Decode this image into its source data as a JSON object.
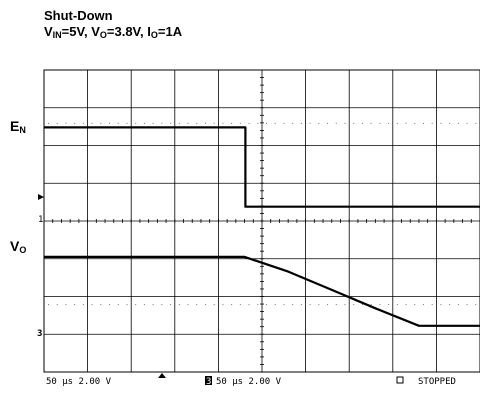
{
  "title": "Shut-Down",
  "conditions": [
    {
      "sym": "V",
      "sub": "IN",
      "val": "=5V, "
    },
    {
      "sym": "V",
      "sub": "O",
      "val": "=3.8V, "
    },
    {
      "sym": "I",
      "sub": "O",
      "val": "=1A"
    }
  ],
  "signal_labels": {
    "en": {
      "sym": "E",
      "sub": "N"
    },
    "vo": {
      "sym": "V",
      "sub": "O"
    }
  },
  "channel_markers": {
    "ch1": "1",
    "ch3": "3"
  },
  "footer": {
    "ch1_scale": "50 µs 2.00 V",
    "ch3_icon": "3",
    "ch3_scale": "50 µs 2.00 V",
    "status": "STOPPED"
  },
  "colors": {
    "trace": "#000000",
    "grid": "#000000",
    "background": "#ffffff"
  },
  "chart_data": {
    "type": "line",
    "title": "Shut-Down",
    "x_unit": "µs",
    "x_per_division": 50,
    "divisions_x": 10,
    "divisions_y": 8,
    "v_per_division": 2.0,
    "xlim": [
      0,
      500
    ],
    "series": [
      {
        "name": "EN",
        "points": [
          [
            0,
            3.1
          ],
          [
            231,
            3.1
          ],
          [
            231,
            0.0
          ],
          [
            500,
            0.0
          ]
        ]
      },
      {
        "name": "VO",
        "points": [
          [
            0,
            3.8
          ],
          [
            230,
            3.8
          ],
          [
            280,
            3.0
          ],
          [
            330,
            2.0
          ],
          [
            380,
            1.0
          ],
          [
            430,
            0.05
          ],
          [
            500,
            0.05
          ]
        ]
      }
    ]
  }
}
